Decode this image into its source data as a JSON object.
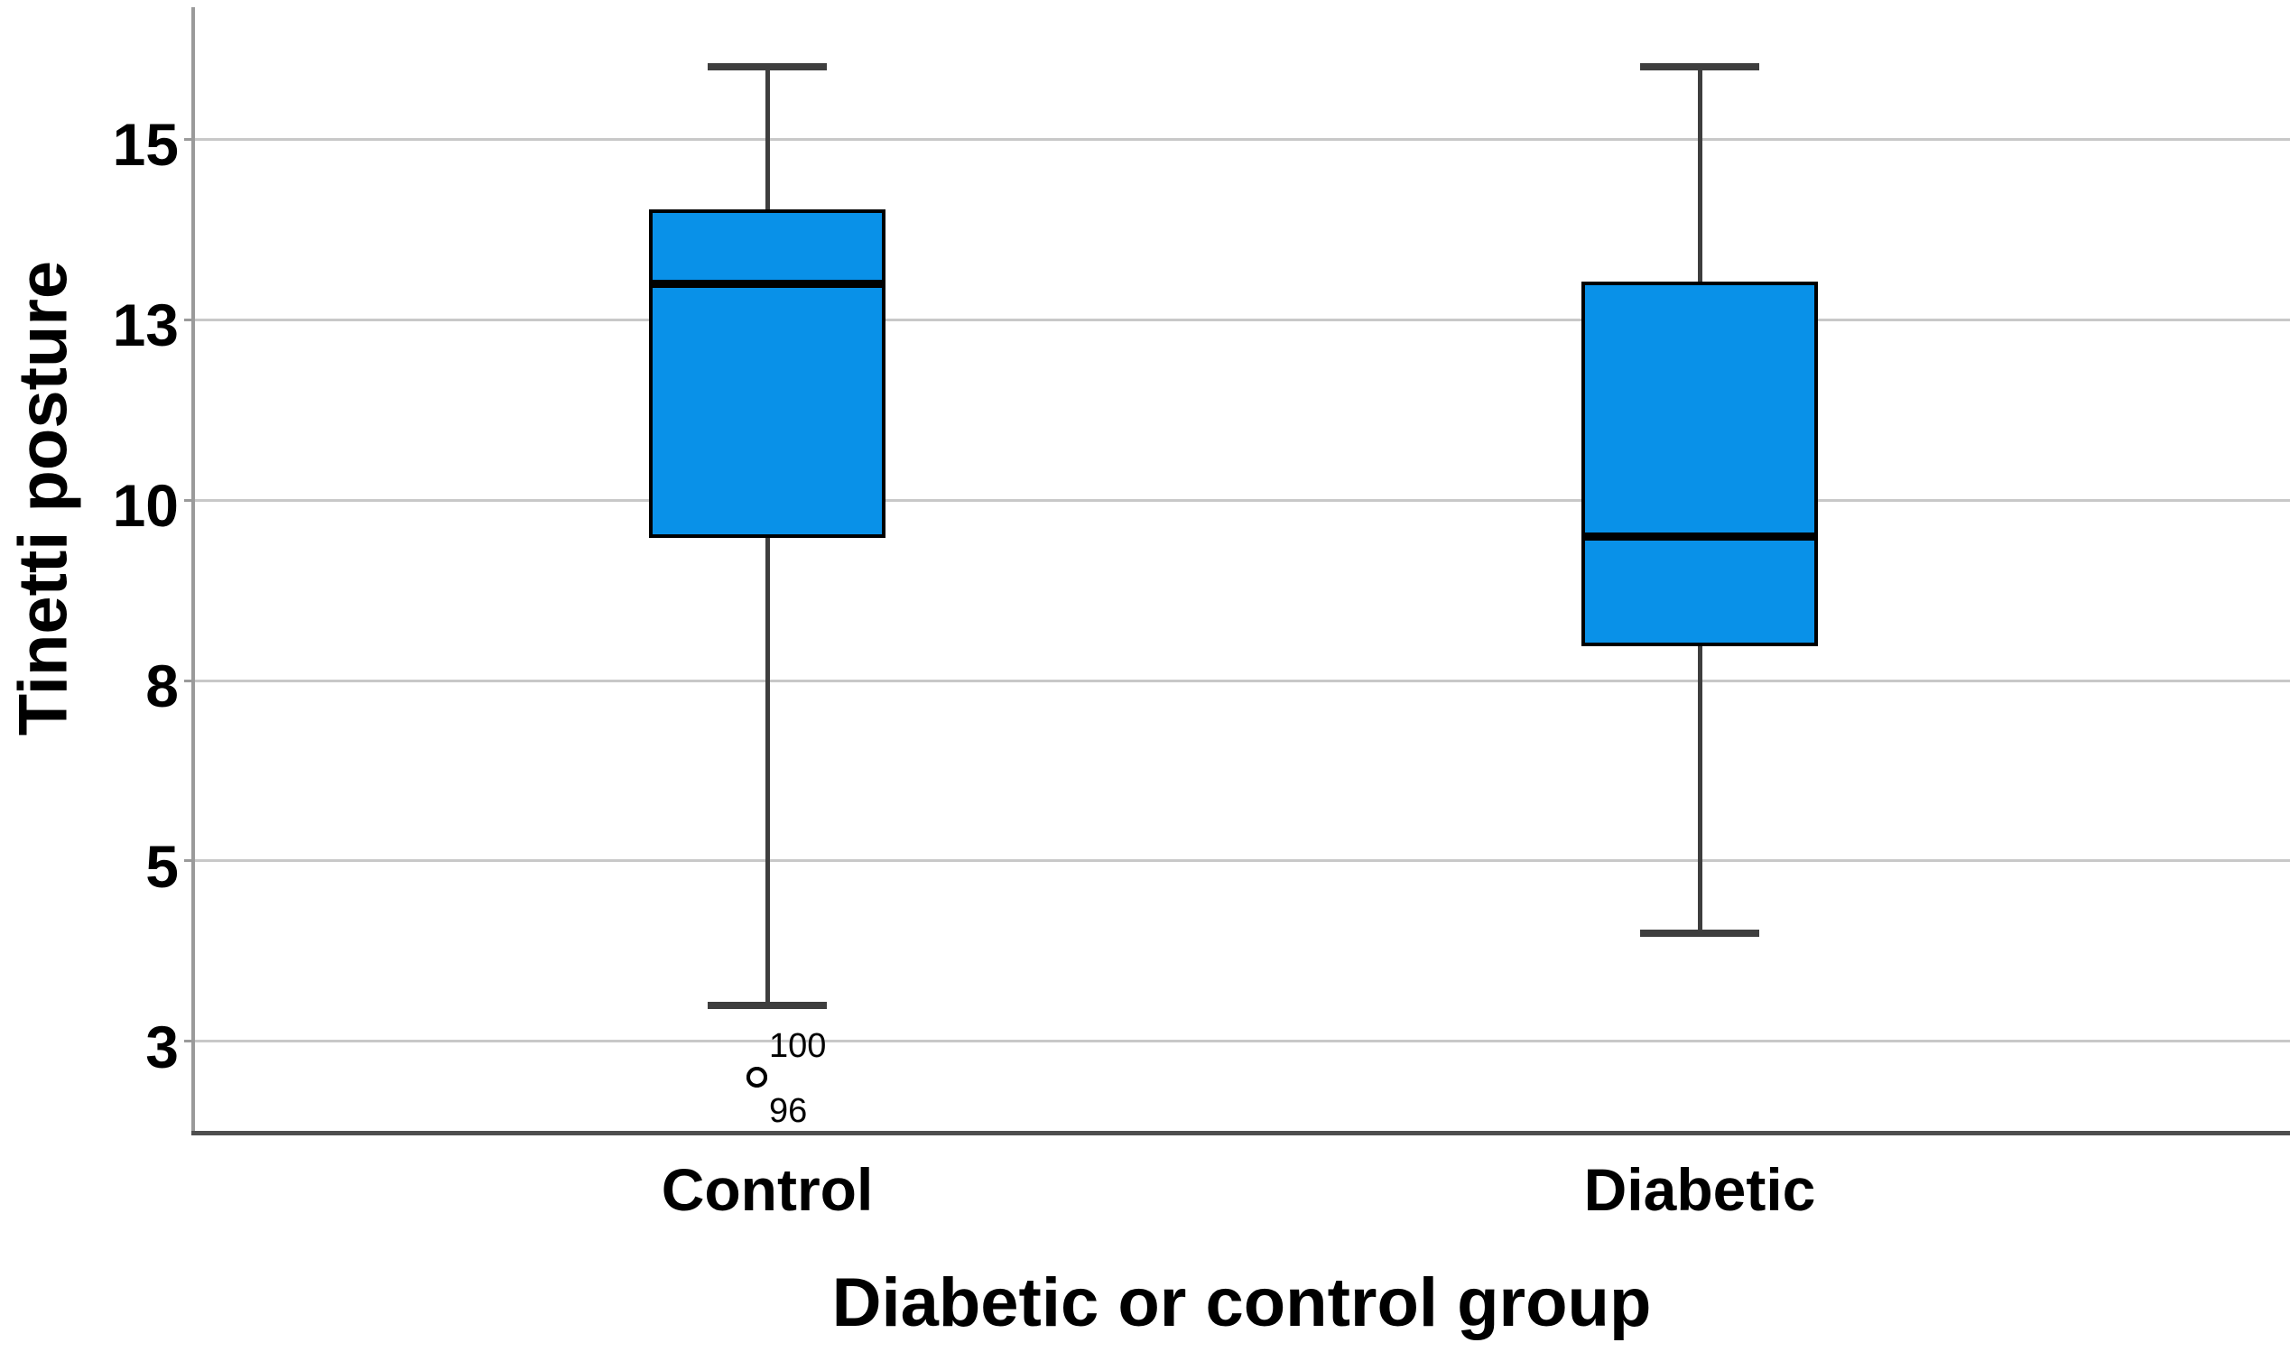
{
  "chart_data": {
    "type": "box",
    "title": "",
    "xlabel": "Diabetic or control group",
    "ylabel": "Tinetti posture",
    "categories": [
      "Control",
      "Diabetic"
    ],
    "series": [
      {
        "name": "Control",
        "whisker_min": 3,
        "q1": 9.5,
        "median": 13,
        "q3": 14,
        "whisker_max": 16,
        "outliers": [
          {
            "value": 2,
            "case_label": "100",
            "label_position": "above"
          },
          {
            "value": 2,
            "case_label": "96",
            "label_position": "below"
          }
        ]
      },
      {
        "name": "Diabetic",
        "whisker_min": 4,
        "q1": 8,
        "median": 9.5,
        "q3": 13,
        "whisker_max": 16,
        "outliers": []
      }
    ],
    "y_ticks": [
      {
        "value": 2.5,
        "label": "3"
      },
      {
        "value": 5,
        "label": "5"
      },
      {
        "value": 7.5,
        "label": "8"
      },
      {
        "value": 10,
        "label": "10"
      },
      {
        "value": 12.5,
        "label": "13"
      },
      {
        "value": 15,
        "label": "15"
      }
    ],
    "ylim": [
      1.26,
      16.83
    ],
    "grid": "horizontal-only",
    "legend": "none",
    "colors": {
      "box_fill": "#0991E8",
      "box_border": "#000000",
      "median": "#000000",
      "whisker": "#3E3E3E",
      "gridline": "#C8C8C8",
      "y_axis_line": "#9A9A9A",
      "x_axis_line": "#4E4E4E",
      "outlier_stroke": "#000000",
      "outlier_fill": "#FFFFFF"
    }
  }
}
